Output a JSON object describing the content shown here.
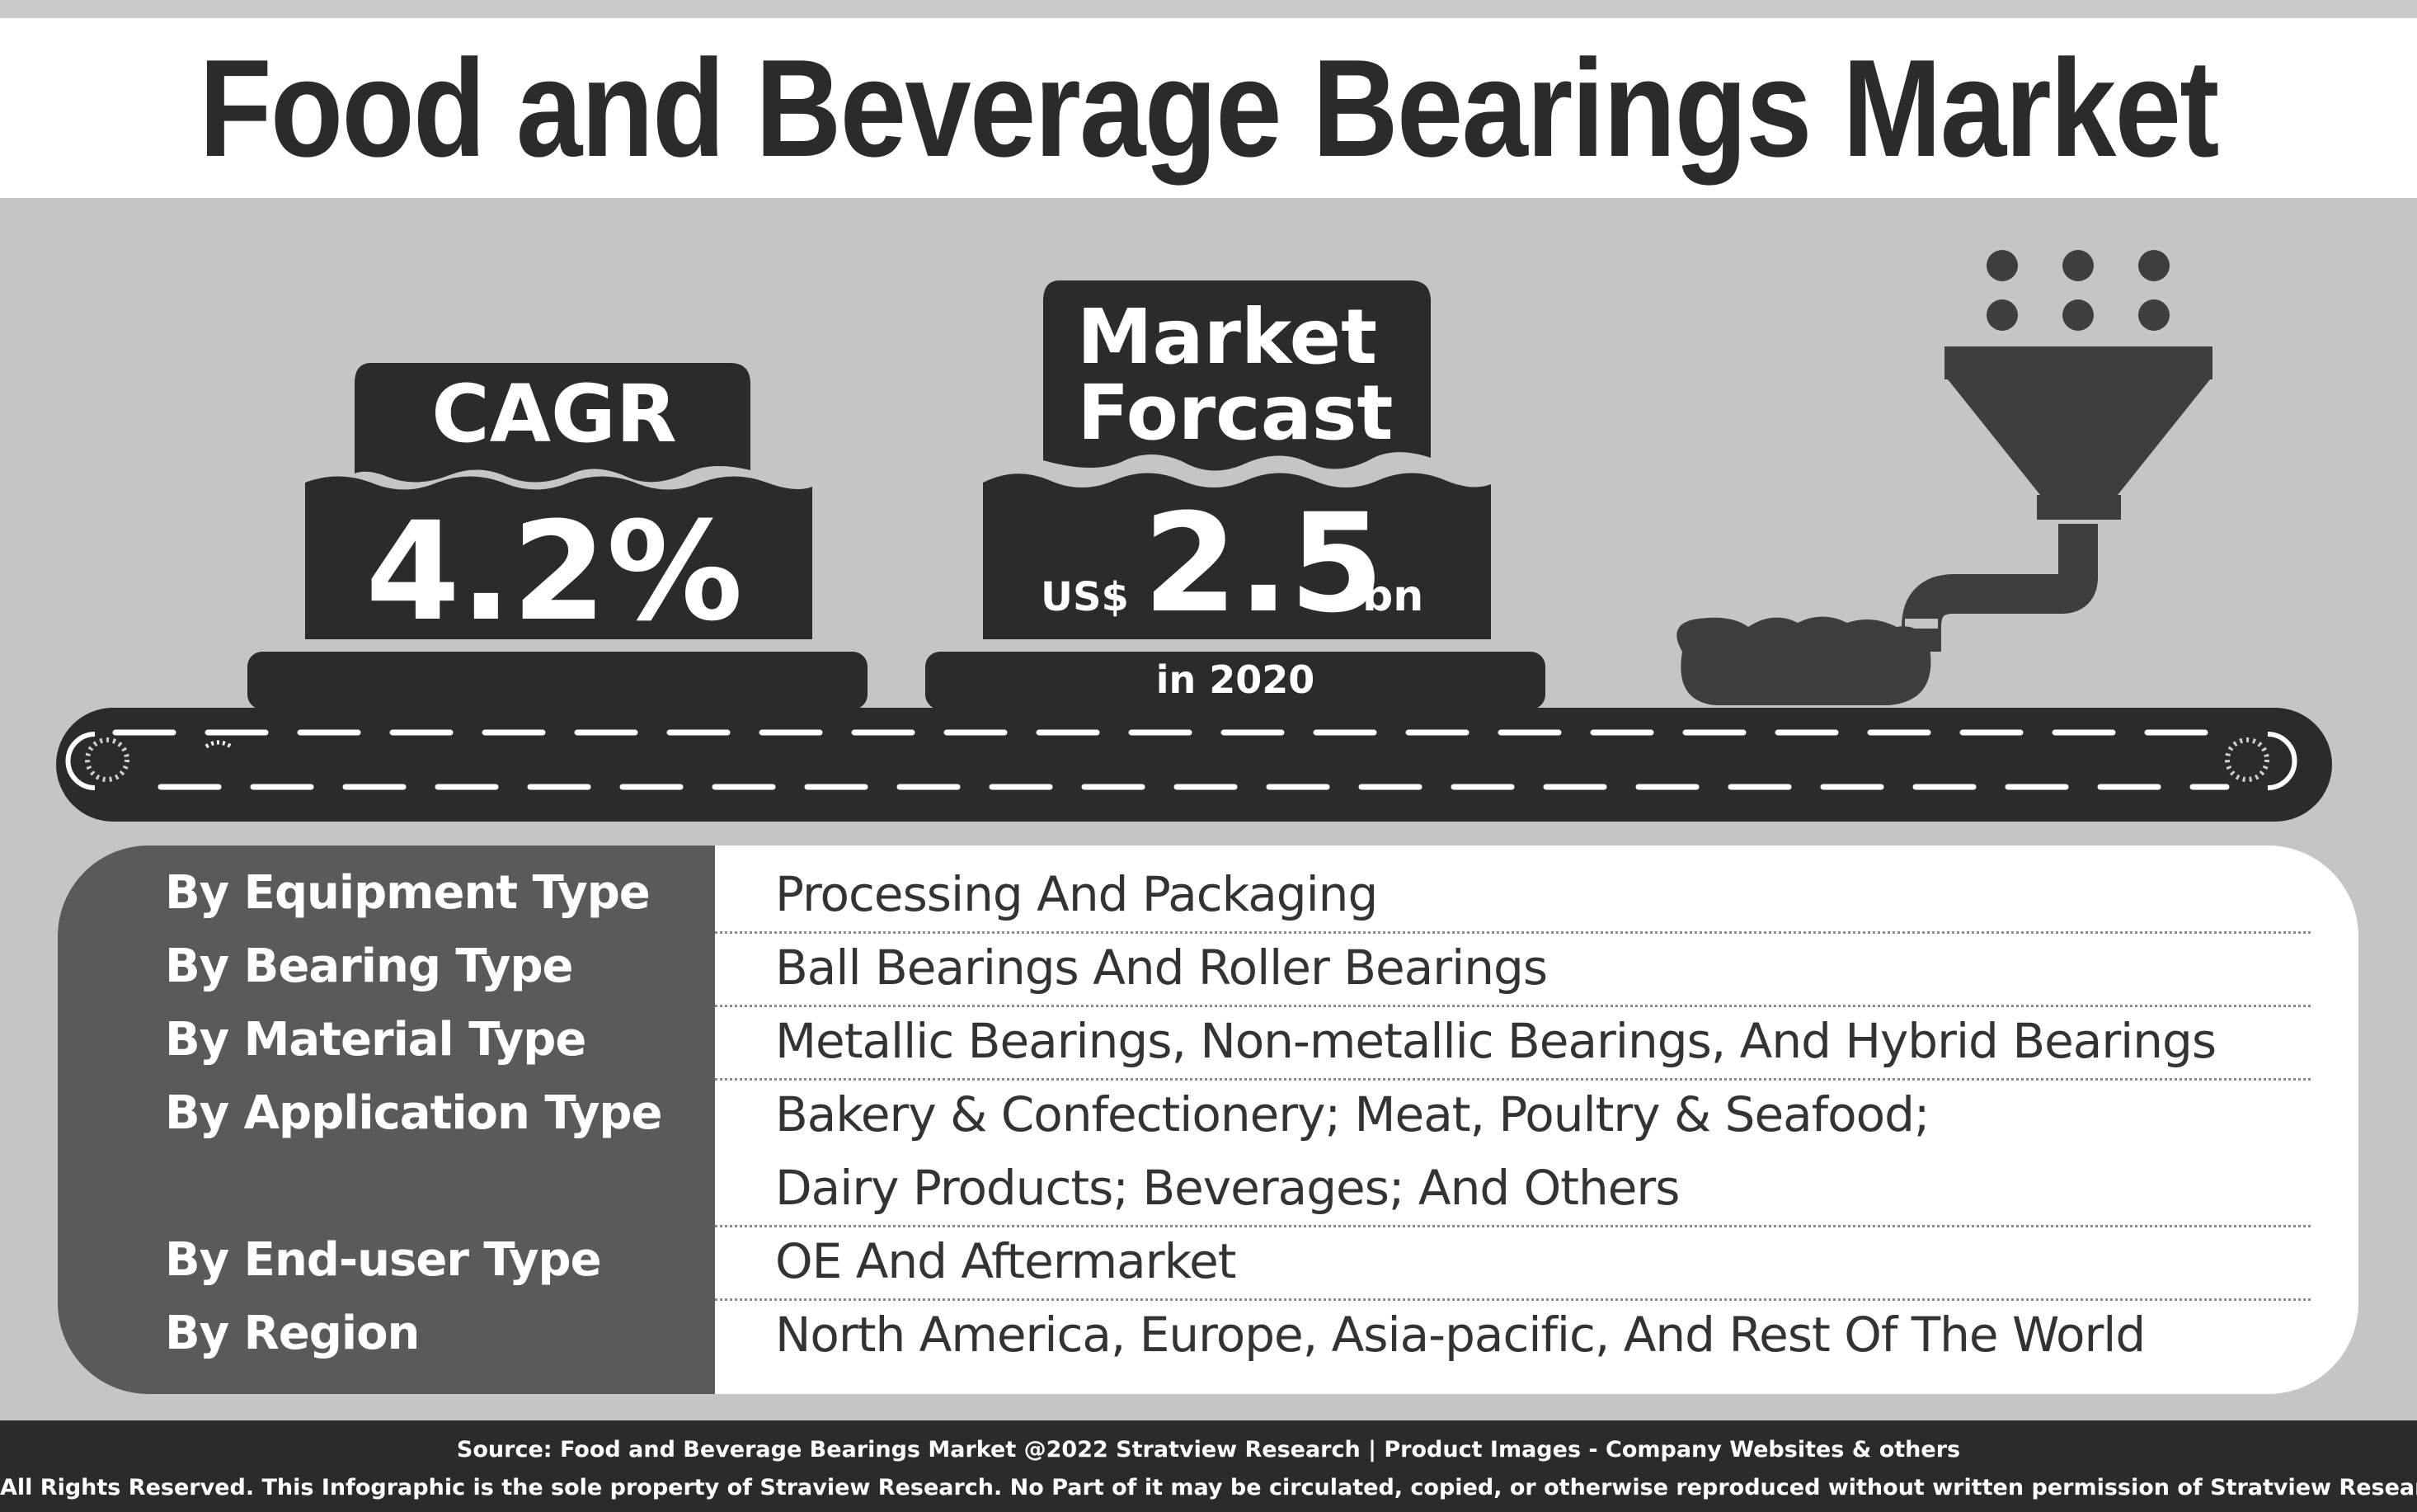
{
  "title": "Food and Beverage Bearings Market",
  "cagr": {
    "label": "CAGR",
    "value": "4.2%"
  },
  "forecast": {
    "label_line1": "Market",
    "label_line2": "Forcast",
    "currency": "US$",
    "value": "2.5",
    "unit": "bn",
    "year": "in 2020"
  },
  "segments": [
    {
      "category": "By Equipment Type",
      "values": [
        "Processing And Packaging"
      ]
    },
    {
      "category": "By Bearing Type",
      "values": [
        "Ball Bearings And Roller Bearings"
      ]
    },
    {
      "category": "By Material Type",
      "values": [
        "Metallic Bearings, Non-metallic Bearings, And Hybrid Bearings"
      ]
    },
    {
      "category": "By Application Type",
      "values": [
        "Bakery & Confectionery; Meat, Poultry & Seafood;",
        "Dairy Products; Beverages; And Others"
      ]
    },
    {
      "category": "By End-user Type",
      "values": [
        "OE And Aftermarket"
      ]
    },
    {
      "category": "By Region",
      "values": [
        "North America, Europe, Asia-pacific, And Rest Of The World"
      ]
    }
  ],
  "footer": {
    "source": "Source: Food and Beverage Bearings Market @2022 Stratview Research | Product Images - Company Websites & others",
    "rights": "All Rights Reserved. This Infographic is the sole property of Straview Research. No Part of it may be circulated, copied, or otherwise reproduced without written permission of Stratview Research."
  },
  "icons": [
    "funnel-icon",
    "conveyor-belt-icon"
  ],
  "colors": {
    "dark": "#2b2b2b",
    "mid": "#5a5a5a",
    "background": "#c4c6c5",
    "white": "#ffffff"
  }
}
